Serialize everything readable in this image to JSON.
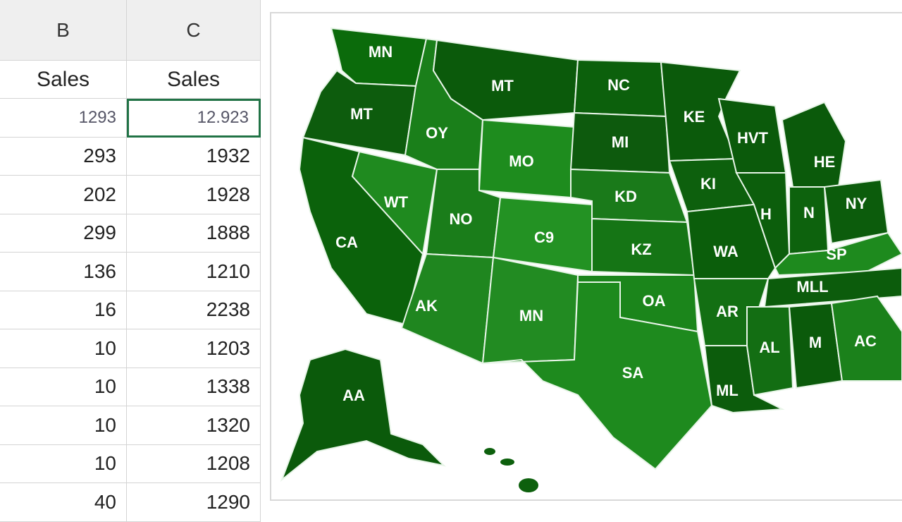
{
  "table": {
    "columns": [
      "B",
      "C"
    ],
    "header": [
      "Sales",
      "Sales"
    ],
    "rows": [
      [
        "1293",
        "12.923"
      ],
      [
        "293",
        "1932"
      ],
      [
        "202",
        "1928"
      ],
      [
        "299",
        "1888"
      ],
      [
        "136",
        "1210"
      ],
      [
        "16",
        "2238"
      ],
      [
        "10",
        "1203"
      ],
      [
        "10",
        "1338"
      ],
      [
        "10",
        "1320"
      ],
      [
        "10",
        "1208"
      ],
      [
        "40",
        "1290"
      ]
    ]
  },
  "map": {
    "labels": [
      "MN",
      "MT",
      "NC",
      "MT",
      "OY",
      "MI",
      "KE",
      "HVT",
      "HE",
      "MO",
      "WT",
      "NO",
      "KD",
      "KI",
      "H",
      "N",
      "NY",
      "CA",
      "C9",
      "KZ",
      "WA",
      "SP",
      "MLL",
      "AK",
      "MN",
      "OA",
      "AR",
      "AL",
      "M",
      "AC",
      "SA",
      "AA",
      "ML"
    ]
  }
}
